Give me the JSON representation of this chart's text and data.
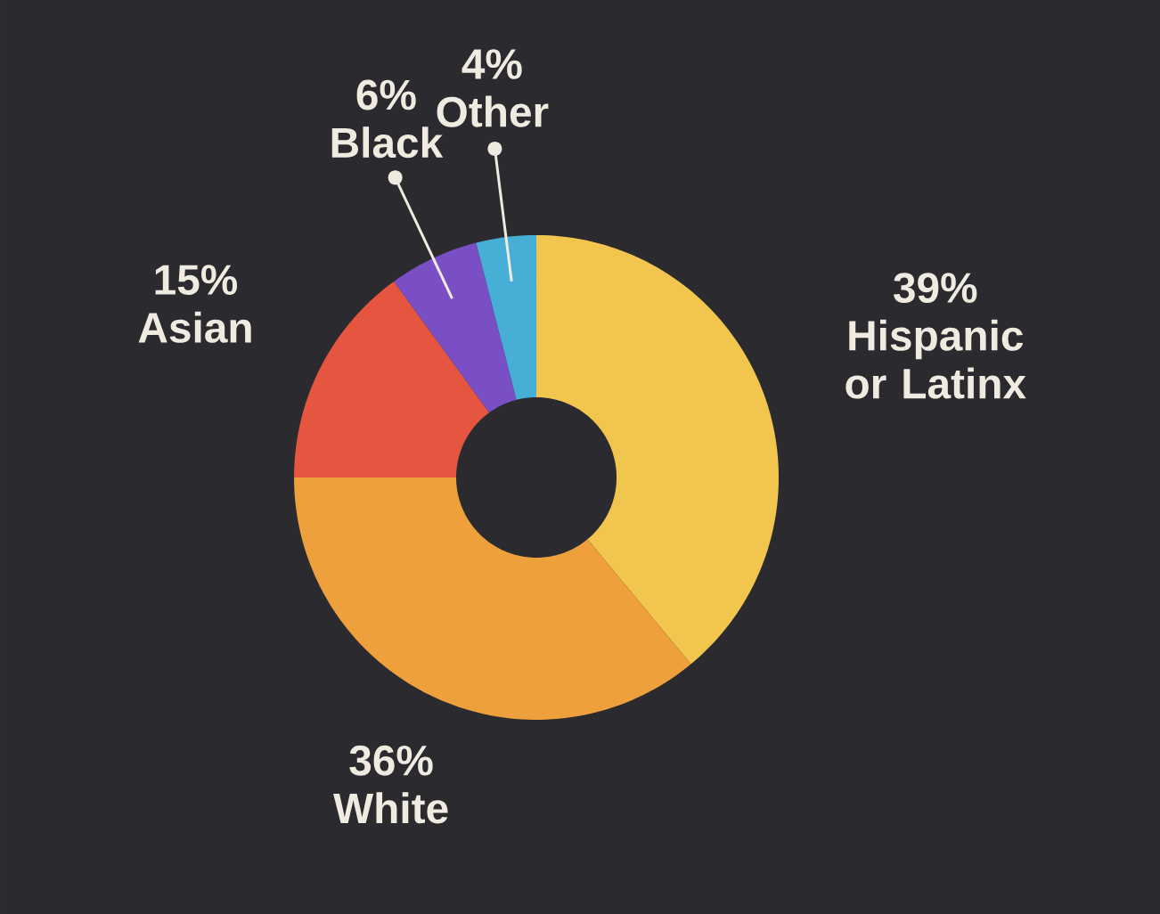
{
  "chart_data": {
    "type": "donut",
    "categories": [
      "Hispanic or Latinx",
      "White",
      "Asian",
      "Black",
      "Other"
    ],
    "values": [
      39,
      36,
      15,
      6,
      4
    ],
    "value_labels": [
      "39%",
      "36%",
      "15%",
      "6%",
      "4%"
    ],
    "colors": [
      "#f2c64e",
      "#eea03c",
      "#e6553f",
      "#7a4fc6",
      "#47aed6"
    ]
  }
}
